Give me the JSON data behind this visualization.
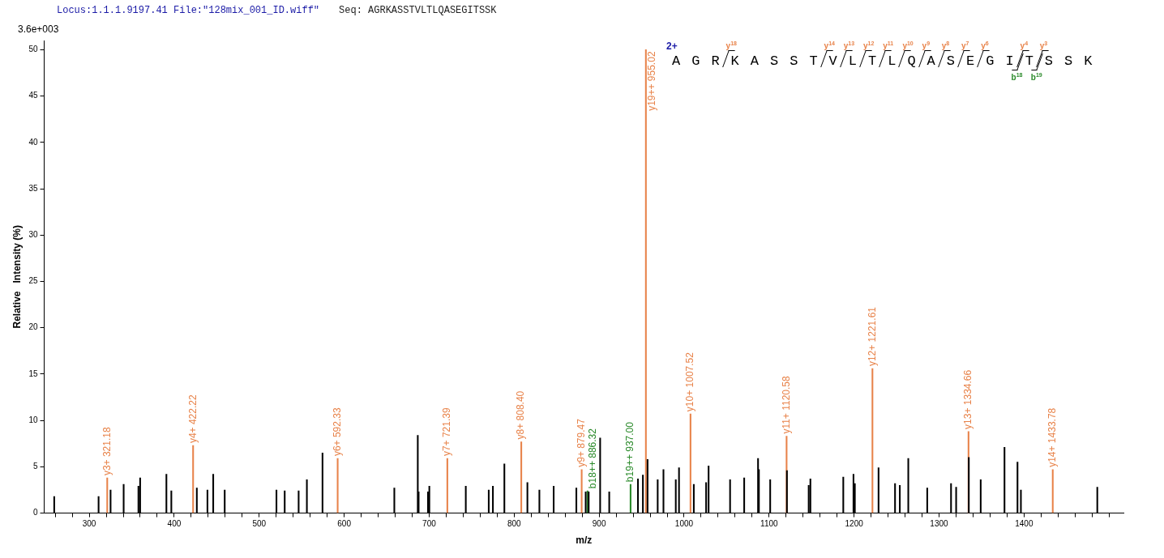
{
  "chart_data": {
    "type": "bar",
    "title": "Locus:1.1.1.9197.41 File:\"128mix_001_ID.wiff\"",
    "subtitle": "Seq: AGRKASSTVLTLQASEGITSSK",
    "xlabel": "m/z",
    "ylabel": "Relative   Intensity (%)",
    "annotations": [
      "3.6e+003",
      "2+",
      "AGRKASSTVLTLQASEGITSSK",
      "y$^{18}$",
      "y$^{14}$",
      "y$^{13}$",
      "y$^{12}$",
      "y$^{11}$",
      "y$^{10}$",
      "y$^{9}$",
      "y$^{8}$",
      "y$^{7}$",
      "y$^{6}$",
      "y$^{4}$",
      "y$^{3}$",
      "b$^{18}$",
      "b$^{19}$"
    ],
    "series": [
      {
        "color": "#000000",
        "x": [
          258.8,
          311.0,
          325.1,
          340.5,
          357.9,
          359.9,
          390.8,
          396.6,
          426.6,
          439.1,
          445.9,
          459.4,
          520.3,
          530.0,
          546.4,
          556.1,
          574.5,
          659.0,
          686.6,
          687.6,
          698.6,
          700.2,
          743.1,
          770.1,
          775.0,
          788.5,
          815.6,
          829.7,
          846.5,
          873.2,
          884.2,
          887.7,
          901.2,
          911.9,
          945.7,
          951.5,
          957.0,
          968.9,
          975.7,
          990.2,
          994.0,
          1011.4,
          1025.9,
          1028.8,
          1054.1,
          1070.7,
          1087.0,
          1088.0,
          1101.3,
          1121.0,
          1146.6,
          1148.6,
          1187.3,
          1199.3,
          1200.9,
          1228.8,
          1248.2,
          1253.8,
          1263.8,
          1286.1,
          1314.1,
          1320.1,
          1335.0,
          1349.0,
          1377.0,
          1392.3,
          1396.3,
          1486.2
        ],
        "values": [
          1.8,
          1.8,
          2.5,
          3.1,
          2.9,
          3.8,
          4.2,
          2.4,
          2.7,
          2.5,
          4.2,
          2.5,
          2.5,
          2.4,
          2.4,
          3.6,
          6.5,
          2.7,
          8.4,
          2.3,
          2.3,
          2.9,
          2.9,
          2.5,
          2.9,
          5.3,
          3.3,
          2.5,
          2.9,
          2.7,
          2.3,
          2.3,
          8.1,
          2.3,
          3.7,
          4.1,
          5.8,
          3.6,
          4.7,
          3.6,
          4.9,
          3.1,
          3.3,
          5.1,
          3.6,
          3.8,
          5.9,
          4.7,
          3.6,
          4.6,
          3.0,
          3.7,
          3.9,
          4.2,
          3.2,
          4.9,
          3.2,
          3.0,
          5.9,
          2.7,
          3.2,
          2.8,
          6.0,
          3.6,
          7.1,
          5.5,
          2.5,
          2.8
        ]
      },
      {
        "color": "#e8834a",
        "x": [
          321.18,
          422.22,
          592.33,
          721.39,
          808.4,
          879.47,
          955.02,
          1007.52,
          1120.58,
          1221.61,
          1334.66,
          1433.78
        ],
        "values": [
          3.8,
          7.3,
          5.9,
          5.9,
          7.7,
          4.7,
          50,
          10.7,
          8.3,
          15.6,
          8.8,
          4.7
        ],
        "value_labels": [
          "y3+ 321.18",
          "y4+ 422.22",
          "y6+ 592.33",
          "y7+ 721.39",
          "y8+ 808.40",
          "y9+ 879.47",
          "y19++ 955.02",
          "y10+ 1007.52",
          "y11+ 1120.58",
          "y12+ 1221.61",
          "y13+ 1334.66",
          "y14+ 1433.78"
        ]
      },
      {
        "color": "#2a8a2a",
        "x": [
          886.32,
          937.0
        ],
        "values": [
          2.4,
          3.1
        ],
        "value_labels": [
          "b18++ 886.32",
          "b19++ 937.00"
        ]
      }
    ],
    "xlim": [
      247,
      1517
    ],
    "xticks": [
      {
        "value": 260,
        "label": null
      },
      {
        "value": 280,
        "label": null
      },
      300,
      {
        "value": 320,
        "label": null
      },
      {
        "value": 340,
        "label": null
      },
      {
        "value": 360,
        "label": null
      },
      {
        "value": 380,
        "label": null
      },
      400,
      {
        "value": 420,
        "label": null
      },
      {
        "value": 440,
        "label": null
      },
      {
        "value": 460,
        "label": null
      },
      {
        "value": 480,
        "label": null
      },
      500,
      {
        "value": 520,
        "label": null
      },
      {
        "value": 540,
        "label": null
      },
      {
        "value": 560,
        "label": null
      },
      {
        "value": 580,
        "label": null
      },
      600,
      {
        "value": 620,
        "label": null
      },
      {
        "value": 640,
        "label": null
      },
      {
        "value": 660,
        "label": null
      },
      {
        "value": 680,
        "label": null
      },
      700,
      {
        "value": 720,
        "label": null
      },
      {
        "value": 740,
        "label": null
      },
      {
        "value": 760,
        "label": null
      },
      {
        "value": 780,
        "label": null
      },
      800,
      {
        "value": 820,
        "label": null
      },
      {
        "value": 840,
        "label": null
      },
      {
        "value": 860,
        "label": null
      },
      {
        "value": 880,
        "label": null
      },
      900,
      {
        "value": 920,
        "label": null
      },
      {
        "value": 940,
        "label": null
      },
      {
        "value": 960,
        "label": null
      },
      {
        "value": 980,
        "label": null
      },
      1000,
      {
        "value": 1020,
        "label": null
      },
      {
        "value": 1040,
        "label": null
      },
      {
        "value": 1060,
        "label": null
      },
      {
        "value": 1080,
        "label": null
      },
      1100,
      {
        "value": 1120,
        "label": null
      },
      {
        "value": 1140,
        "label": null
      },
      {
        "value": 1160,
        "label": null
      },
      {
        "value": 1180,
        "label": null
      },
      1200,
      {
        "value": 1220,
        "label": null
      },
      {
        "value": 1240,
        "label": null
      },
      {
        "value": 1260,
        "label": null
      },
      {
        "value": 1280,
        "label": null
      },
      1300,
      {
        "value": 1320,
        "label": null
      },
      {
        "value": 1340,
        "label": null
      },
      {
        "value": 1360,
        "label": null
      },
      {
        "value": 1380,
        "label": null
      },
      1400,
      {
        "value": 1420,
        "label": null
      },
      {
        "value": 1440,
        "label": null
      },
      {
        "value": 1460,
        "label": null
      },
      {
        "value": 1480,
        "label": null
      },
      {
        "value": 1500,
        "label": null
      }
    ],
    "ylim": [
      0,
      51
    ],
    "yticks": [
      0,
      5,
      10,
      15,
      20,
      25,
      30,
      35,
      40,
      45,
      50
    ]
  }
}
